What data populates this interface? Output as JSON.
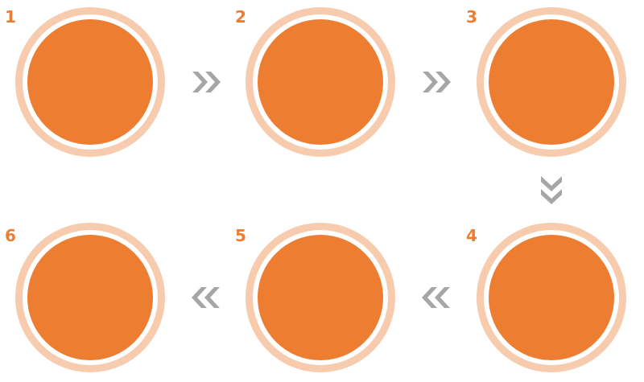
{
  "colors": {
    "ring": "#F7CBAD",
    "circle": "#ED7D31",
    "gap": "#FFFFFF",
    "number": "#ED7D31",
    "arrow": "#A6A6A6"
  },
  "steps": [
    {
      "number": "1"
    },
    {
      "number": "2"
    },
    {
      "number": "3"
    },
    {
      "number": "4"
    },
    {
      "number": "5"
    },
    {
      "number": "6"
    }
  ],
  "arrows": [
    {
      "direction": "right",
      "icon": "double-chevron-right-icon"
    },
    {
      "direction": "right",
      "icon": "double-chevron-right-icon"
    },
    {
      "direction": "down",
      "icon": "double-chevron-down-icon"
    },
    {
      "direction": "left",
      "icon": "double-chevron-left-icon"
    },
    {
      "direction": "left",
      "icon": "double-chevron-left-icon"
    }
  ]
}
